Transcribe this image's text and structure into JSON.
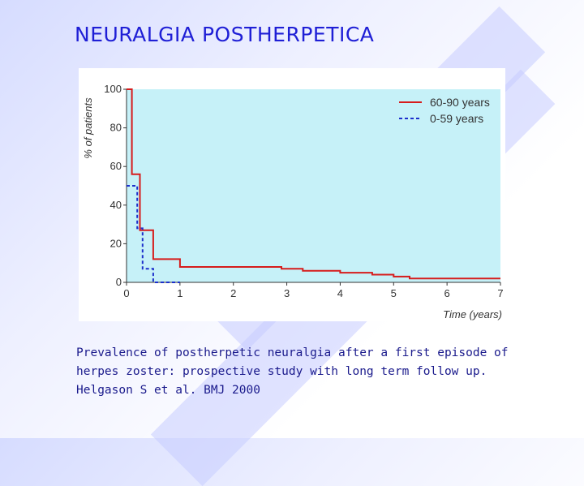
{
  "slide": {
    "title": "NEURALGIA POSTHERPETICA",
    "caption_lines": [
      "Prevalence of postherpetic neuralgia after a first episode of",
      "herpes zoster: prospective study with long term follow up.",
      "Helgason S et al. BMJ 2000"
    ]
  },
  "colors": {
    "plot_background": "#c6f1f8",
    "series_60_90": "#d61c1c",
    "series_0_59": "#1c2fcc",
    "title": "#1f1fd6",
    "caption": "#1a1a8c"
  },
  "chart_data": {
    "type": "line",
    "line_shape": "step",
    "xlabel": "Time (years)",
    "ylabel": "% of patients",
    "xlim": [
      0,
      7
    ],
    "ylim": [
      0,
      100
    ],
    "xticks": [
      0,
      1,
      2,
      3,
      4,
      5,
      6,
      7
    ],
    "yticks": [
      0,
      20,
      40,
      60,
      80,
      100
    ],
    "grid": false,
    "legend_position": "top-right",
    "series": [
      {
        "name": "60-90 years",
        "style": "solid",
        "color": "#d61c1c",
        "x": [
          0,
          0.1,
          0.1,
          0.25,
          0.25,
          0.5,
          0.5,
          1.0,
          1.0,
          2.9,
          2.9,
          3.3,
          3.3,
          4.0,
          4.0,
          4.6,
          4.6,
          5.0,
          5.0,
          5.3,
          5.3,
          7.0
        ],
        "y": [
          100,
          100,
          56,
          56,
          27,
          27,
          12,
          12,
          8,
          8,
          7,
          7,
          6,
          6,
          5,
          5,
          4,
          4,
          3,
          3,
          2,
          2
        ]
      },
      {
        "name": "0-59 years",
        "style": "dashed",
        "color": "#1c2fcc",
        "x": [
          0,
          0.2,
          0.2,
          0.3,
          0.3,
          0.5,
          0.5,
          1.0
        ],
        "y": [
          50,
          50,
          28,
          28,
          7,
          7,
          0,
          0
        ]
      }
    ]
  }
}
